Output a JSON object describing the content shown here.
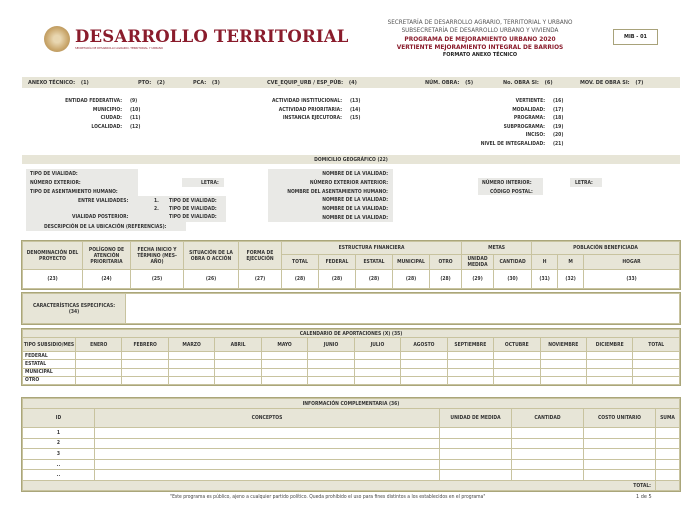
{
  "header": {
    "brand": "DESARROLLO TERRITORIAL",
    "brand_sub": "SECRETARÍA DE DESARROLLO AGRARIO, TERRITORIAL Y URBANO",
    "lines": [
      "SECRETARÍA DE DESARROLLO AGRARIO, TERRITORIAL Y URBANO",
      "SUBSECRETARÍA DE DESARROLLO URBANO Y VIVIENDA",
      "PROGRAMA DE MEJORAMIENTO URBANO 2020",
      "VERTIENTE MEJORAMIENTO INTEGRAL DE BARRIOS",
      "FORMATO ANEXO TÉCNICO"
    ],
    "code": "MIB - 01"
  },
  "top_bar": [
    {
      "label": "ANEXO TÉCNICO:",
      "value": "(1)"
    },
    {
      "label": "PTO:",
      "value": "(2)"
    },
    {
      "label": "PCA:",
      "value": "(3)"
    },
    {
      "label": "CVE_EQUIP_URB / ESP_PÚB:",
      "value": "(4)"
    },
    {
      "label": "NÚM. OBRA:",
      "value": "(5)"
    },
    {
      "label": "No. OBRA SI:",
      "value": "(6)"
    },
    {
      "label": "MOV. DE OBRA SI:",
      "value": "(7)"
    }
  ],
  "fields_left": [
    {
      "label": "ENTIDAD FEDERATIVA:",
      "value": "(9)"
    },
    {
      "label": "MUNICIPIO:",
      "value": "(10)"
    },
    {
      "label": "CIUDAD:",
      "value": "(11)"
    },
    {
      "label": "LOCALIDAD:",
      "value": "(12)"
    }
  ],
  "fields_mid": [
    {
      "label": "ACTIVIDAD INSTITUCIONAL:",
      "value": "(13)"
    },
    {
      "label": "ACTIVIDAD PRIORITARIA:",
      "value": "(14)"
    },
    {
      "label": "INSTANCIA EJECUTORA:",
      "value": "(15)"
    }
  ],
  "fields_right": [
    {
      "label": "VERTIENTE:",
      "value": "(16)"
    },
    {
      "label": "MODALIDAD:",
      "value": "(17)"
    },
    {
      "label": "PROGRAMA:",
      "value": "(18)"
    },
    {
      "label": "SUBPROGRAMA:",
      "value": "(19)"
    },
    {
      "label": "INCISO:",
      "value": "(20)"
    },
    {
      "label": "NIVEL DE INTEGRALIDAD:",
      "value": "(21)"
    }
  ],
  "domicilio": {
    "title": "DOMICILIO GEOGRÁFICO  (22)",
    "tipo_vialidad": "TIPO DE VIALIDAD:",
    "numero_exterior": "NÚMERO EXTERIOR:",
    "letra": "LETRA:",
    "tipo_asentamiento": "TIPO DE ASENTAMIENTO HUMANO:",
    "entre_vialidades": "ENTRE VIALIDADES:",
    "n1": "1.",
    "n2": "2.",
    "tipo_vialidad_1": "TIPO DE VIALIDAD:",
    "tipo_vialidad_2": "TIPO DE VIALIDAD:",
    "vialidad_posterior": "VIALIDAD POSTERIOR:",
    "tipo_vialidad_3": "TIPO DE VIALIDAD:",
    "descripcion": "DESCRIPCIÓN DE LA UBICACIÓN (REFERENCIAS):",
    "mid": [
      "NOMBRE DE LA VIALIDAD:",
      "NÚMERO EXTERIOR ANTERIOR:",
      "NOMBRE DEL ASENTAMIENTO HUMANO:",
      "NOMBRE DE LA VIALIDAD:",
      "NOMBRE DE LA VIALIDAD:",
      "NOMBRE DE LA VIALIDAD:"
    ],
    "numero_interior": "NÚMERO INTERIOR:",
    "letra2": "LETRA:",
    "codigo_postal": "CÓDIGO POSTAL:"
  },
  "project_table": {
    "headers": [
      "DENOMINACIÓN DEL PROYECTO",
      "POLÍGONO DE ATENCIÓN PRIORITARIA",
      "FECHA INICIO Y TÉRMINO (MES-AÑO)",
      "SITUACIÓN DE LA OBRA O ACCIÓN",
      "FORMA DE EJECUCIÓN"
    ],
    "group_fin": "ESTRUCTURA FINANCIERA",
    "fin": [
      "TOTAL",
      "FEDERAL",
      "ESTATAL",
      "MUNICIPAL",
      "OTRO"
    ],
    "group_metas": "METAS",
    "metas": [
      "UNIDAD MEDIDA",
      "CANTIDAD"
    ],
    "group_pob": "POBLACIÓN BENEFICIADA",
    "pob": [
      "H",
      "M",
      "HOGAR"
    ],
    "row": [
      "(23)",
      "(24)",
      "(25)",
      "(26)",
      "(27)",
      "(28)",
      "(28)",
      "(28)",
      "(28)",
      "(28)",
      "(29)",
      "(30)",
      "(31)",
      "(32)",
      "(33)"
    ]
  },
  "caracteristicas": {
    "label": "CARACTERÍSTICAS ESPECIFICAS:",
    "num": "(34)"
  },
  "calendario": {
    "title": "CALENDARIO DE APORTACIONES (X) (35)",
    "first_header": "TIPO SUBSIDIO/MES",
    "months": [
      "ENERO",
      "FEBRERO",
      "MARZO",
      "ABRIL",
      "MAYO",
      "JUNIO",
      "JULIO",
      "AGOSTO",
      "SEPTIEMBRE",
      "OCTUBRE",
      "NOVIEMBRE",
      "DICIEMBRE",
      "TOTAL"
    ],
    "rows": [
      "FEDERAL",
      "ESTATAL",
      "MUNICIPAL",
      "OTRO"
    ]
  },
  "info": {
    "title": "INFORMACIÓN COMPLEMENTARIA  (36)",
    "headers": [
      "ID",
      "CONCEPTOS",
      "UNIDAD DE MEDIDA",
      "CANTIDAD",
      "COSTO UNITARIO",
      "SUMA"
    ],
    "ids": [
      "1",
      "2",
      "3",
      "..",
      "..",
      ""
    ],
    "total": "TOTAL:"
  },
  "footer": {
    "note": "\"Este programa es público, ajeno a cualquier partido político. Queda prohibido el uso para fines distintos a los establecidos en el programa\"",
    "page": "1 de 5"
  }
}
